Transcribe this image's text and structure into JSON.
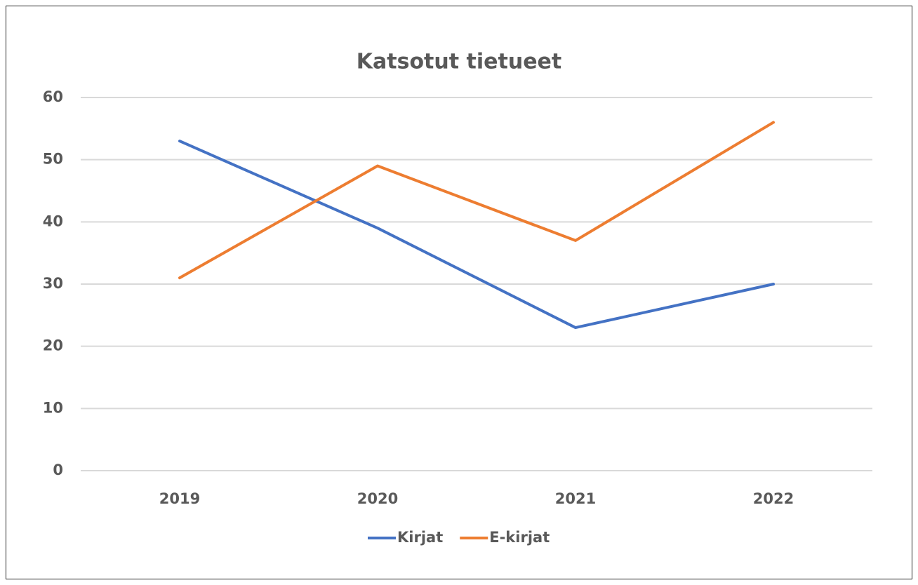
{
  "chart_data": {
    "type": "line",
    "title": "Katsotut tietueet",
    "categories": [
      "2019",
      "2020",
      "2021",
      "2022"
    ],
    "series": [
      {
        "name": "Kirjat",
        "color": "#4472c4",
        "values": [
          53,
          39,
          23,
          30
        ]
      },
      {
        "name": "E-kirjat",
        "color": "#ed7d31",
        "values": [
          31,
          49,
          37,
          56
        ]
      }
    ],
    "ylim": [
      0,
      60
    ],
    "yticks": [
      0,
      10,
      20,
      30,
      40,
      50,
      60
    ],
    "grid": true,
    "legend": "bottom"
  }
}
